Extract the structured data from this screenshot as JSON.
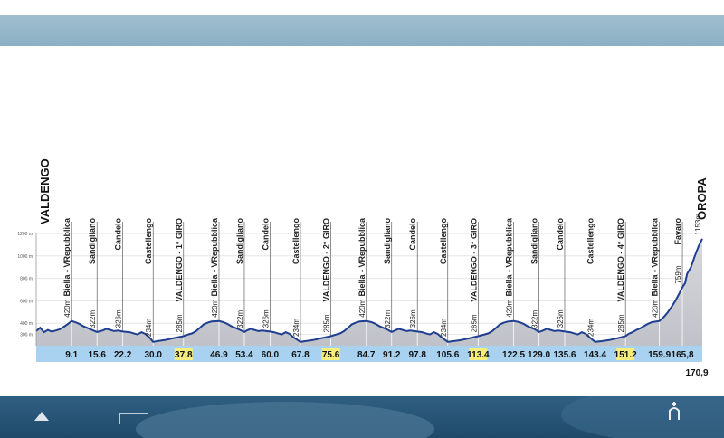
{
  "colors": {
    "band": "#9fbecf",
    "bottom_band": "#2f5f82",
    "profile_line": "#1f3e8f",
    "profile_fill": "#c9ccd2",
    "km_bar": "#a8d2ef",
    "lap_highlight": "#f6ee7a"
  },
  "chart_data": {
    "type": "area",
    "start_label": "VALDENGO",
    "finish_label": "OROPA",
    "xlim": [
      0,
      170.9
    ],
    "ylim": [
      200,
      1200
    ],
    "y_ticks": [
      {
        "value": 300,
        "label": "300 m"
      },
      {
        "value": 400,
        "label": "400 m"
      },
      {
        "value": 600,
        "label": "600 m"
      },
      {
        "value": 800,
        "label": "800 m"
      },
      {
        "value": 1000,
        "label": "1000 m"
      },
      {
        "value": 1200,
        "label": "1200 m"
      }
    ],
    "km_marks": [
      {
        "km": 9.1,
        "label": "9.1",
        "place": "Biella - VRepubblica",
        "altitude": "420m"
      },
      {
        "km": 15.6,
        "label": "15.6",
        "place": "Sandigliano",
        "altitude": "322m"
      },
      {
        "km": 22.2,
        "label": "22.2",
        "place": "Candelo",
        "altitude": "326m"
      },
      {
        "km": 30.0,
        "label": "30.0",
        "place": "Castellengo",
        "altitude": "234m"
      },
      {
        "km": 37.8,
        "label": "37.8",
        "place": "VALDENGO - 1° GIRO",
        "altitude": "285m",
        "highlight": true
      },
      {
        "km": 46.9,
        "label": "46.9",
        "place": "Biella - VRepubblica",
        "altitude": "420m"
      },
      {
        "km": 53.4,
        "label": "53.4",
        "place": "Sandigliano",
        "altitude": "322m"
      },
      {
        "km": 60.0,
        "label": "60.0",
        "place": "Candelo",
        "altitude": "326m"
      },
      {
        "km": 67.8,
        "label": "67.8",
        "place": "Castellengo",
        "altitude": "234m"
      },
      {
        "km": 75.6,
        "label": "75.6",
        "place": "VALDENGO - 2° GIRO",
        "altitude": "285m",
        "highlight": true
      },
      {
        "km": 84.7,
        "label": "84.7",
        "place": "Biella - VRepubblica",
        "altitude": "420m"
      },
      {
        "km": 91.2,
        "label": "91.2",
        "place": "Sandigliano",
        "altitude": "322m"
      },
      {
        "km": 97.8,
        "label": "97.8",
        "place": "Candelo",
        "altitude": "326m"
      },
      {
        "km": 105.6,
        "label": "105.6",
        "place": "Castellengo",
        "altitude": "234m"
      },
      {
        "km": 113.4,
        "label": "113.4",
        "place": "VALDENGO - 3° GIRO",
        "altitude": "285m",
        "highlight": true
      },
      {
        "km": 122.5,
        "label": "122.5",
        "place": "Biella - VRepubblica",
        "altitude": "420m"
      },
      {
        "km": 129.0,
        "label": "129.0",
        "place": "Sandigliano",
        "altitude": "322m"
      },
      {
        "km": 135.6,
        "label": "135.6",
        "place": "Candelo",
        "altitude": "326m"
      },
      {
        "km": 143.4,
        "label": "143.4",
        "place": "Castellengo",
        "altitude": "234m"
      },
      {
        "km": 151.2,
        "label": "151.2",
        "place": "VALDENGO - 4° GIRO",
        "altitude": "285m",
        "highlight": true
      },
      {
        "km": 159.9,
        "label": "159.9",
        "place": "Biella - VRepubblica",
        "altitude": "420m"
      },
      {
        "km": 165.8,
        "label": "165,8",
        "place": "Favaro",
        "altitude": "759m"
      },
      {
        "km": 170.9,
        "label": "170,9",
        "place": "OROPA",
        "altitude": "1153m",
        "below": true
      }
    ],
    "profile": {
      "x": [
        0,
        1,
        2,
        3,
        4,
        5,
        6,
        7,
        8,
        9.1,
        10,
        11,
        12,
        13,
        14,
        15.6,
        17,
        18,
        19,
        20,
        21,
        22.2,
        24,
        25,
        26,
        27,
        28,
        29,
        30,
        31,
        33,
        35,
        37.8,
        39,
        40,
        41,
        42,
        43,
        44,
        45,
        46.9,
        48,
        49,
        50,
        51,
        52,
        53.4,
        54,
        55,
        56,
        57,
        58,
        60,
        61,
        62,
        63,
        64,
        65,
        66,
        67.8,
        69,
        71,
        73,
        75.6,
        77,
        78,
        79,
        80,
        81,
        82,
        83,
        84.7,
        86,
        87,
        88,
        89,
        90,
        91.2,
        92,
        93,
        94,
        95,
        96,
        97.8,
        99,
        100,
        101,
        102,
        103,
        104,
        105.6,
        107,
        109,
        111,
        113.4,
        115,
        116,
        117,
        118,
        119,
        120,
        121,
        122.5,
        124,
        125,
        126,
        127,
        128,
        129,
        130,
        131,
        132,
        133,
        134,
        135.6,
        137,
        138,
        139,
        140,
        141,
        142,
        143.4,
        145,
        147,
        149,
        151.2,
        152,
        153,
        154,
        155,
        156,
        157,
        158,
        159.9,
        161,
        162,
        163,
        164,
        165,
        165.8,
        166.5,
        167,
        168,
        169,
        170,
        170.9
      ],
      "y": [
        330,
        360,
        320,
        340,
        325,
        335,
        345,
        365,
        390,
        420,
        410,
        395,
        375,
        360,
        345,
        322,
        335,
        350,
        340,
        330,
        335,
        326,
        320,
        310,
        300,
        320,
        305,
        275,
        234,
        240,
        250,
        265,
        285,
        300,
        310,
        330,
        360,
        390,
        405,
        415,
        420,
        410,
        395,
        375,
        360,
        345,
        322,
        335,
        350,
        340,
        330,
        335,
        326,
        320,
        310,
        300,
        320,
        305,
        275,
        234,
        240,
        250,
        265,
        285,
        300,
        310,
        330,
        360,
        390,
        405,
        415,
        420,
        410,
        395,
        375,
        360,
        345,
        322,
        335,
        350,
        340,
        330,
        335,
        326,
        320,
        310,
        300,
        320,
        305,
        275,
        234,
        240,
        250,
        265,
        285,
        300,
        310,
        330,
        360,
        390,
        405,
        415,
        420,
        410,
        395,
        375,
        360,
        345,
        322,
        335,
        350,
        340,
        330,
        335,
        326,
        320,
        310,
        300,
        320,
        305,
        275,
        234,
        240,
        250,
        265,
        285,
        305,
        320,
        340,
        355,
        375,
        395,
        410,
        420,
        455,
        495,
        545,
        600,
        665,
        720,
        759,
        840,
        900,
        1000,
        1090,
        1153
      ]
    }
  }
}
